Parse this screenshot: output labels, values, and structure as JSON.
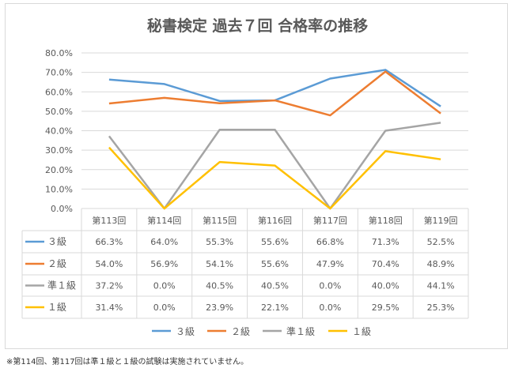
{
  "chart_data": {
    "type": "line",
    "title": "秘書検定 過去７回 合格率の推移",
    "categories": [
      "第113回",
      "第114回",
      "第115回",
      "第116回",
      "第117回",
      "第118回",
      "第119回"
    ],
    "ylim": [
      0,
      80
    ],
    "yticks": [
      "0.0%",
      "10.0%",
      "20.0%",
      "30.0%",
      "40.0%",
      "50.0%",
      "60.0%",
      "70.0%",
      "80.0%"
    ],
    "grid": true,
    "legend": "bottom",
    "data_table": true,
    "series": [
      {
        "name": "３級",
        "color": "#5b9bd5",
        "values": [
          66.3,
          64.0,
          55.3,
          55.6,
          66.8,
          71.3,
          52.5
        ],
        "labels": [
          "66.3%",
          "64.0%",
          "55.3%",
          "55.6%",
          "66.8%",
          "71.3%",
          "52.5%"
        ]
      },
      {
        "name": "２級",
        "color": "#ed7d31",
        "values": [
          54.0,
          56.9,
          54.1,
          55.6,
          47.9,
          70.4,
          48.9
        ],
        "labels": [
          "54.0%",
          "56.9%",
          "54.1%",
          "55.6%",
          "47.9%",
          "70.4%",
          "48.9%"
        ]
      },
      {
        "name": "準１級",
        "color": "#a5a5a5",
        "values": [
          37.2,
          0.0,
          40.5,
          40.5,
          0.0,
          40.0,
          44.1
        ],
        "labels": [
          "37.2%",
          "0.0%",
          "40.5%",
          "40.5%",
          "0.0%",
          "40.0%",
          "44.1%"
        ]
      },
      {
        "name": "１級",
        "color": "#ffc000",
        "values": [
          31.4,
          0.0,
          23.9,
          22.1,
          0.0,
          29.5,
          25.3
        ],
        "labels": [
          "31.4%",
          "0.0%",
          "23.9%",
          "22.1%",
          "0.0%",
          "29.5%",
          "25.3%"
        ]
      }
    ]
  },
  "note": "※第114回、第117回は準１級と１級の試験は実施されていません。"
}
